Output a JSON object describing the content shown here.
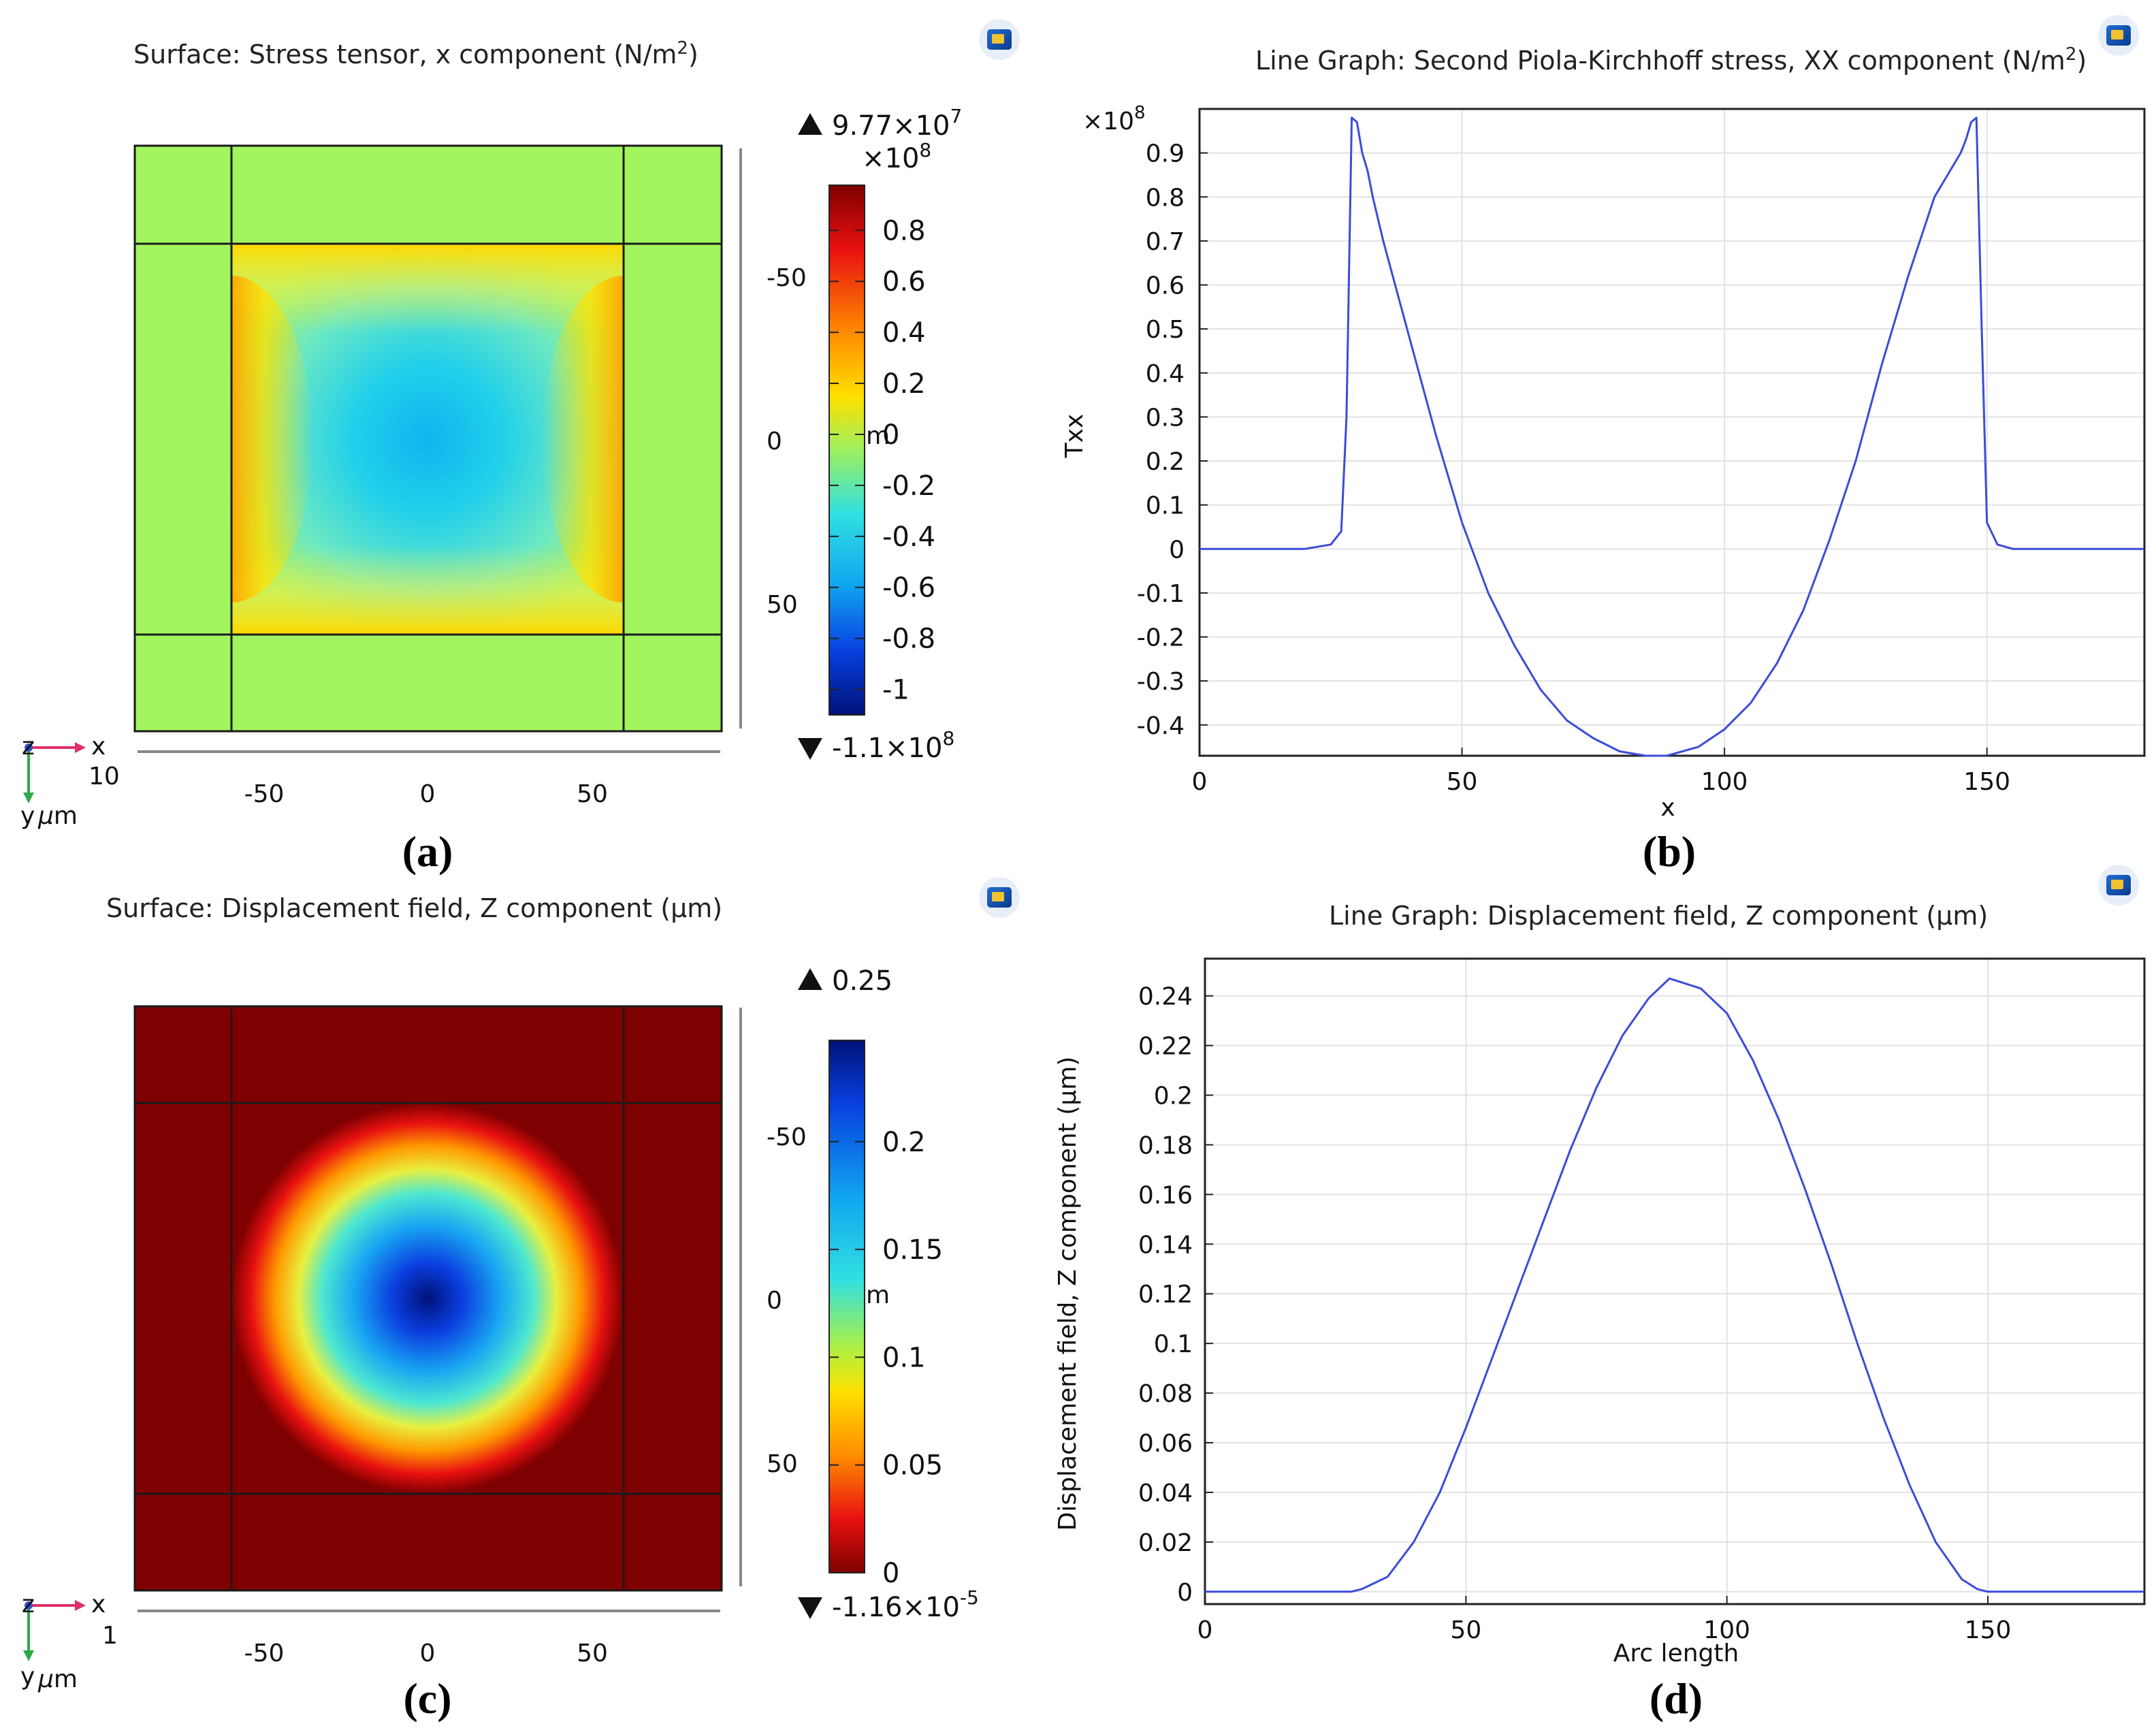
{
  "chart_data": [
    {
      "panel": "(a)",
      "type": "heatmap",
      "title": "Surface: Stress tensor, x component (N/m²)",
      "title_main": "Surface: Stress tensor, x component (N/m",
      "title_sup": "2",
      "title_end": ")",
      "xticks": [
        "-50",
        "0",
        "50"
      ],
      "yticks": [
        "-50",
        "0",
        "50"
      ],
      "axis_x_label": "x",
      "axis_y_label": "y",
      "axis_unit": "μm",
      "axis_unit_prefix": "μ",
      "axis_unit_suffix": "m",
      "axis_z_label": "z",
      "scale_label": "10",
      "colorbar": {
        "max_label": "9.77×10",
        "max_exp": "7",
        "min_label": "-1.1×10",
        "min_exp": "8",
        "multiplier": "×10",
        "multiplier_exp": "8",
        "ticks": [
          "0.8",
          "0.6",
          "0.4",
          "0.2",
          "0",
          "-0.2",
          "-0.4",
          "-0.6",
          "-0.8",
          "-1"
        ],
        "tick_values": [
          0.8,
          0.6,
          0.4,
          0.2,
          0,
          -0.2,
          -0.4,
          -0.6,
          -0.8,
          -1.0
        ],
        "range": [
          -1.1,
          0.977
        ],
        "stray_label": "m"
      },
      "xlim": [
        -90,
        90
      ],
      "ylim": [
        -90,
        90
      ],
      "membrane_half_width": 60
    },
    {
      "panel": "(b)",
      "type": "line",
      "title": "Line Graph: Second Piola-Kirchhoff stress, XX component (N/m²)",
      "title_main": "Line Graph: Second Piola-Kirchhoff stress, XX component (N/m",
      "title_sup": "2",
      "title_end": ")",
      "xlabel": "x",
      "ylabel": "Txx",
      "y_multiplier": "×10",
      "y_multiplier_exp": "8",
      "xlim": [
        0,
        180
      ],
      "ylim": [
        -0.47,
        1.0
      ],
      "xticks": [
        "0",
        "50",
        "100",
        "150"
      ],
      "xtick_values": [
        0,
        50,
        100,
        150
      ],
      "yticks": [
        "0.9",
        "0.8",
        "0.7",
        "0.6",
        "0.5",
        "0.4",
        "0.3",
        "0.2",
        "0.1",
        "0",
        "-0.1",
        "-0.2",
        "-0.3",
        "-0.4"
      ],
      "ytick_values": [
        0.9,
        0.8,
        0.7,
        0.6,
        0.5,
        0.4,
        0.3,
        0.2,
        0.1,
        0,
        -0.1,
        -0.2,
        -0.3,
        -0.4
      ],
      "series": [
        {
          "name": "Txx",
          "color": "#3b4cd8",
          "x": [
            0,
            20,
            25,
            27,
            28,
            29,
            30,
            31,
            32,
            33,
            35,
            40,
            45,
            50,
            55,
            60,
            65,
            70,
            75,
            80,
            85,
            89,
            95,
            100,
            105,
            110,
            115,
            120,
            125,
            130,
            135,
            140,
            145,
            146,
            147,
            148,
            149,
            150,
            152,
            155,
            160,
            180
          ],
          "y": [
            0,
            0,
            0.01,
            0.04,
            0.3,
            0.98,
            0.97,
            0.9,
            0.86,
            0.8,
            0.7,
            0.48,
            0.26,
            0.06,
            -0.1,
            -0.22,
            -0.32,
            -0.39,
            -0.43,
            -0.46,
            -0.47,
            -0.47,
            -0.45,
            -0.41,
            -0.35,
            -0.26,
            -0.14,
            0.02,
            0.2,
            0.42,
            0.62,
            0.8,
            0.9,
            0.93,
            0.97,
            0.98,
            0.5,
            0.06,
            0.01,
            0,
            0,
            0
          ]
        }
      ]
    },
    {
      "panel": "(c)",
      "type": "heatmap",
      "title": "Surface: Displacement field, Z component (μm)",
      "xticks": [
        "-50",
        "0",
        "50"
      ],
      "yticks": [
        "-50",
        "0",
        "50"
      ],
      "axis_x_label": "x",
      "axis_y_label": "y",
      "axis_unit": "μm",
      "axis_unit_prefix": "μ",
      "axis_unit_suffix": "m",
      "axis_z_label": "z",
      "scale_label": "1",
      "colorbar": {
        "max_label": "0.25",
        "min_label": "-1.16×10",
        "min_exp": "-5",
        "ticks": [
          "0.2",
          "0.15",
          "0.1",
          "0.05",
          "0"
        ],
        "tick_values": [
          0.2,
          0.15,
          0.1,
          0.05,
          0
        ],
        "range": [
          0,
          0.247
        ],
        "stray_label": "m"
      },
      "xlim": [
        -90,
        90
      ],
      "ylim": [
        -90,
        90
      ],
      "membrane_half_width": 60
    },
    {
      "panel": "(d)",
      "type": "line",
      "title": "Line Graph: Displacement field, Z component (μm)",
      "xlabel": "Arc length",
      "ylabel": "Displacement field, Z component (μm)",
      "xlim": [
        0,
        180
      ],
      "ylim": [
        -0.005,
        0.255
      ],
      "xticks": [
        "0",
        "50",
        "100",
        "150"
      ],
      "xtick_values": [
        0,
        50,
        100,
        150
      ],
      "yticks": [
        "0.24",
        "0.22",
        "0.2",
        "0.18",
        "0.16",
        "0.14",
        "0.12",
        "0.1",
        "0.08",
        "0.06",
        "0.04",
        "0.02",
        "0"
      ],
      "ytick_values": [
        0.24,
        0.22,
        0.2,
        0.18,
        0.16,
        0.14,
        0.12,
        0.1,
        0.08,
        0.06,
        0.04,
        0.02,
        0
      ],
      "series": [
        {
          "name": "Displacement field, Z component",
          "color": "#3b4cd8",
          "x": [
            0,
            10,
            20,
            28,
            30,
            35,
            40,
            45,
            50,
            55,
            60,
            65,
            70,
            75,
            80,
            85,
            89,
            95,
            100,
            105,
            110,
            115,
            120,
            125,
            130,
            135,
            140,
            145,
            148,
            150,
            160,
            170,
            180
          ],
          "y": [
            0,
            0,
            0,
            0,
            0.001,
            0.006,
            0.02,
            0.04,
            0.066,
            0.094,
            0.122,
            0.15,
            0.178,
            0.203,
            0.224,
            0.239,
            0.247,
            0.243,
            0.233,
            0.214,
            0.19,
            0.162,
            0.132,
            0.1,
            0.07,
            0.043,
            0.02,
            0.005,
            0.001,
            0,
            0,
            0,
            0
          ]
        }
      ]
    }
  ]
}
